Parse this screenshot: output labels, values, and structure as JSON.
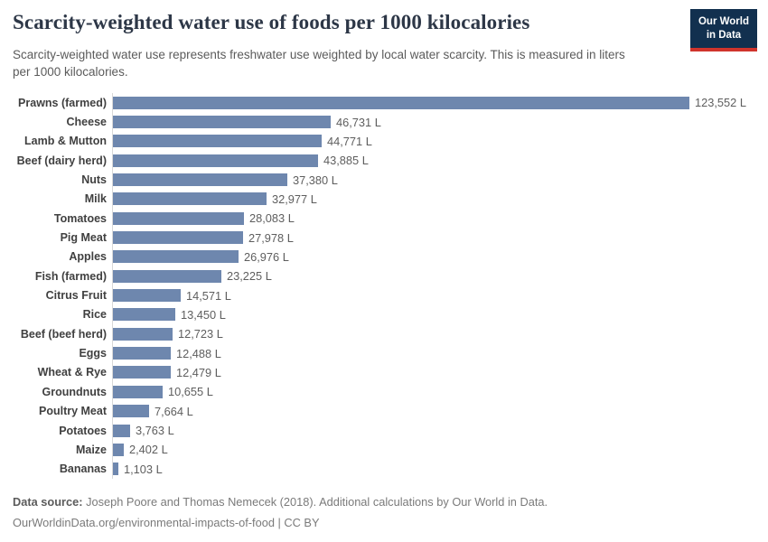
{
  "header": {
    "title": "Scarcity-weighted water use of foods per 1000 kilocalories",
    "subtitle": "Scarcity-weighted water use represents freshwater use weighted by local water scarcity. This is measured in liters per 1000 kilocalories.",
    "logo": {
      "line1": "Our World",
      "line2": "in Data"
    }
  },
  "chart_data": {
    "type": "bar",
    "orientation": "horizontal",
    "title": "Scarcity-weighted water use of foods per 1000 kilocalories",
    "unit": "liters per 1000 kilocalories",
    "xlim": [
      0,
      123552
    ],
    "grid": false,
    "categories": [
      "Prawns (farmed)",
      "Cheese",
      "Lamb & Mutton",
      "Beef (dairy herd)",
      "Nuts",
      "Milk",
      "Tomatoes",
      "Pig Meat",
      "Apples",
      "Fish (farmed)",
      "Citrus Fruit",
      "Rice",
      "Beef (beef herd)",
      "Eggs",
      "Wheat & Rye",
      "Groundnuts",
      "Poultry Meat",
      "Potatoes",
      "Maize",
      "Bananas"
    ],
    "values": [
      123552,
      46731,
      44771,
      43885,
      37380,
      32977,
      28083,
      27978,
      26976,
      23225,
      14571,
      13450,
      12723,
      12488,
      12479,
      10655,
      7664,
      3763,
      2402,
      1103
    ],
    "value_labels": [
      "123,552 L",
      "46,731 L",
      "44,771 L",
      "43,885 L",
      "37,380 L",
      "32,977 L",
      "28,083 L",
      "27,978 L",
      "26,976 L",
      "23,225 L",
      "14,571 L",
      "13,450 L",
      "12,723 L",
      "12,488 L",
      "12,479 L",
      "10,655 L",
      "7,664 L",
      "3,763 L",
      "2,402 L",
      "1,103 L"
    ]
  },
  "footer": {
    "datasource_label": "Data source:",
    "datasource_text": " Joseph Poore and Thomas Nemecek (2018). Additional calculations by Our World in Data.",
    "license_line": "OurWorldinData.org/environmental-impacts-of-food | CC BY"
  },
  "colors": {
    "bar": "#6e87ae",
    "title": "#2d3747",
    "subtitle": "#5b5b5b",
    "axis_line": "#d9d9d9",
    "logo_bg": "#12304f",
    "logo_accent": "#d0342c",
    "background": "#ffffff"
  }
}
